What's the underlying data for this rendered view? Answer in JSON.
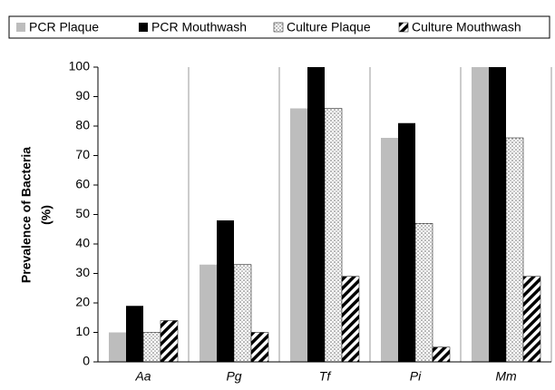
{
  "chart_data": {
    "type": "bar",
    "y_label": [
      "Prevalence of Bacteria",
      "(%)"
    ],
    "categories": [
      "Aa",
      "Pg",
      "Tf",
      "Pi",
      "Mm"
    ],
    "series": [
      {
        "name": "PCR Plaque",
        "color": "#bdbdbd",
        "pattern": "solid",
        "values": [
          10,
          33,
          86,
          76,
          100
        ]
      },
      {
        "name": "PCR Mouthwash",
        "color": "#000000",
        "pattern": "solid",
        "values": [
          19,
          48,
          100,
          81,
          100
        ]
      },
      {
        "name": "Culture Plaque",
        "color": "#8a8a8a",
        "pattern": "dots",
        "values": [
          10,
          33,
          86,
          47,
          76
        ]
      },
      {
        "name": "Culture Mouthwash",
        "color": "#000000",
        "pattern": "hatch",
        "values": [
          14,
          10,
          29,
          5,
          29
        ]
      }
    ],
    "ylim": [
      0,
      100
    ],
    "yticks": [
      0,
      10,
      20,
      30,
      40,
      50,
      60,
      70,
      80,
      90,
      100
    ],
    "legend": "top",
    "grid": false
  }
}
